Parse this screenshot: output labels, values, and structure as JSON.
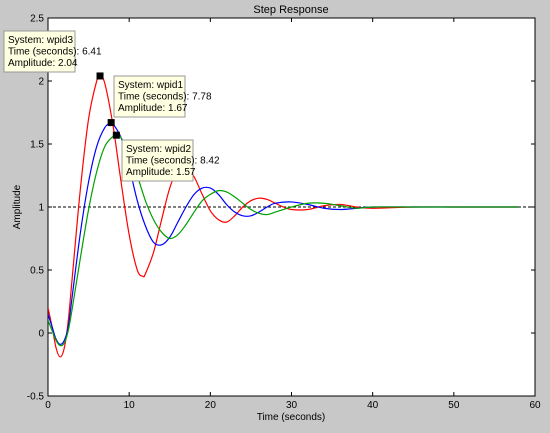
{
  "chart_data": {
    "type": "line",
    "title": "Step Response",
    "xlabel": "Time (seconds)",
    "ylabel": "Amplitude",
    "xlim": [
      0,
      60
    ],
    "ylim": [
      -0.5,
      2.5
    ],
    "xticks": [
      0,
      10,
      20,
      30,
      40,
      50,
      60
    ],
    "yticks": [
      -0.5,
      0,
      0.5,
      1,
      1.5,
      2,
      2.5
    ],
    "grid": false,
    "reference_line": {
      "y": 1,
      "style": "dashed",
      "color": "#000000"
    },
    "series": [
      {
        "name": "wpid3",
        "color": "#ff0000",
        "x": [
          0,
          0.5,
          1,
          1.5,
          2,
          2.5,
          3,
          4,
          5,
          6,
          6.41,
          7,
          8,
          9,
          10,
          11,
          11.7,
          12,
          13,
          14,
          15,
          16,
          17,
          18,
          19,
          20,
          21,
          22,
          23,
          24,
          25,
          26,
          27,
          28,
          29,
          30,
          32,
          34,
          36,
          38,
          40,
          45,
          50,
          55,
          58
        ],
        "y": [
          0.2,
          0.05,
          -0.12,
          -0.19,
          -0.12,
          0.1,
          0.45,
          1.15,
          1.7,
          2.0,
          2.04,
          1.98,
          1.65,
          1.2,
          0.78,
          0.5,
          0.45,
          0.47,
          0.64,
          0.9,
          1.15,
          1.3,
          1.33,
          1.24,
          1.1,
          0.97,
          0.9,
          0.88,
          0.93,
          1.0,
          1.05,
          1.07,
          1.06,
          1.03,
          1.0,
          0.98,
          0.98,
          1.01,
          1.02,
          1.0,
          0.99,
          1.0,
          1.0,
          1.0,
          1.0
        ]
      },
      {
        "name": "wpid1",
        "color": "#0000ff",
        "x": [
          0,
          0.5,
          1,
          1.5,
          2,
          2.5,
          3,
          4,
          5,
          6,
          7,
          7.78,
          8,
          9,
          10,
          11,
          12,
          13,
          14,
          15,
          16,
          17,
          18,
          19,
          20,
          21,
          22,
          23,
          24,
          25,
          26,
          27,
          28,
          30,
          32,
          34,
          36,
          38,
          40,
          45,
          50,
          55,
          58
        ],
        "y": [
          0.15,
          0.05,
          -0.05,
          -0.09,
          -0.06,
          0.05,
          0.3,
          0.8,
          1.2,
          1.48,
          1.63,
          1.67,
          1.66,
          1.55,
          1.32,
          1.05,
          0.85,
          0.72,
          0.7,
          0.76,
          0.88,
          1.0,
          1.1,
          1.15,
          1.15,
          1.1,
          1.02,
          0.96,
          0.93,
          0.93,
          0.96,
          1.0,
          1.03,
          1.04,
          1.02,
          0.99,
          0.98,
          0.99,
          1.0,
          1.0,
          1.0,
          1.0,
          1.0
        ]
      },
      {
        "name": "wpid2",
        "color": "#00a000",
        "x": [
          0,
          0.5,
          1,
          1.5,
          2,
          2.5,
          3,
          4,
          5,
          6,
          7,
          8,
          8.42,
          9,
          10,
          11,
          12,
          13,
          14,
          15,
          16,
          17,
          18,
          19,
          20,
          21,
          22,
          23,
          24,
          25,
          26,
          27,
          28,
          29,
          30,
          32,
          34,
          36,
          38,
          40,
          45,
          50,
          55,
          58
        ],
        "y": [
          0.1,
          0.02,
          -0.06,
          -0.1,
          -0.08,
          0.02,
          0.2,
          0.6,
          0.98,
          1.28,
          1.48,
          1.56,
          1.57,
          1.55,
          1.43,
          1.25,
          1.05,
          0.9,
          0.8,
          0.75,
          0.78,
          0.86,
          0.96,
          1.05,
          1.1,
          1.13,
          1.12,
          1.08,
          1.03,
          0.98,
          0.95,
          0.94,
          0.96,
          0.98,
          1.0,
          1.03,
          1.03,
          1.01,
          0.99,
          1.0,
          1.0,
          1.0,
          1.0,
          1.0
        ]
      }
    ],
    "datatips": [
      {
        "series": "wpid3",
        "x": 6.41,
        "y": 2.04,
        "system": "System: wpid3",
        "time": "Time (seconds): 6.41",
        "amplitude": "Amplitude: 2.04"
      },
      {
        "series": "wpid1",
        "x": 7.78,
        "y": 1.67,
        "system": "System: wpid1",
        "time": "Time (seconds): 7.78",
        "amplitude": "Amplitude: 1.67"
      },
      {
        "series": "wpid2",
        "x": 8.42,
        "y": 1.57,
        "system": "System: wpid2",
        "time": "Time (seconds): 8.42",
        "amplitude": "Amplitude: 1.57"
      }
    ]
  }
}
